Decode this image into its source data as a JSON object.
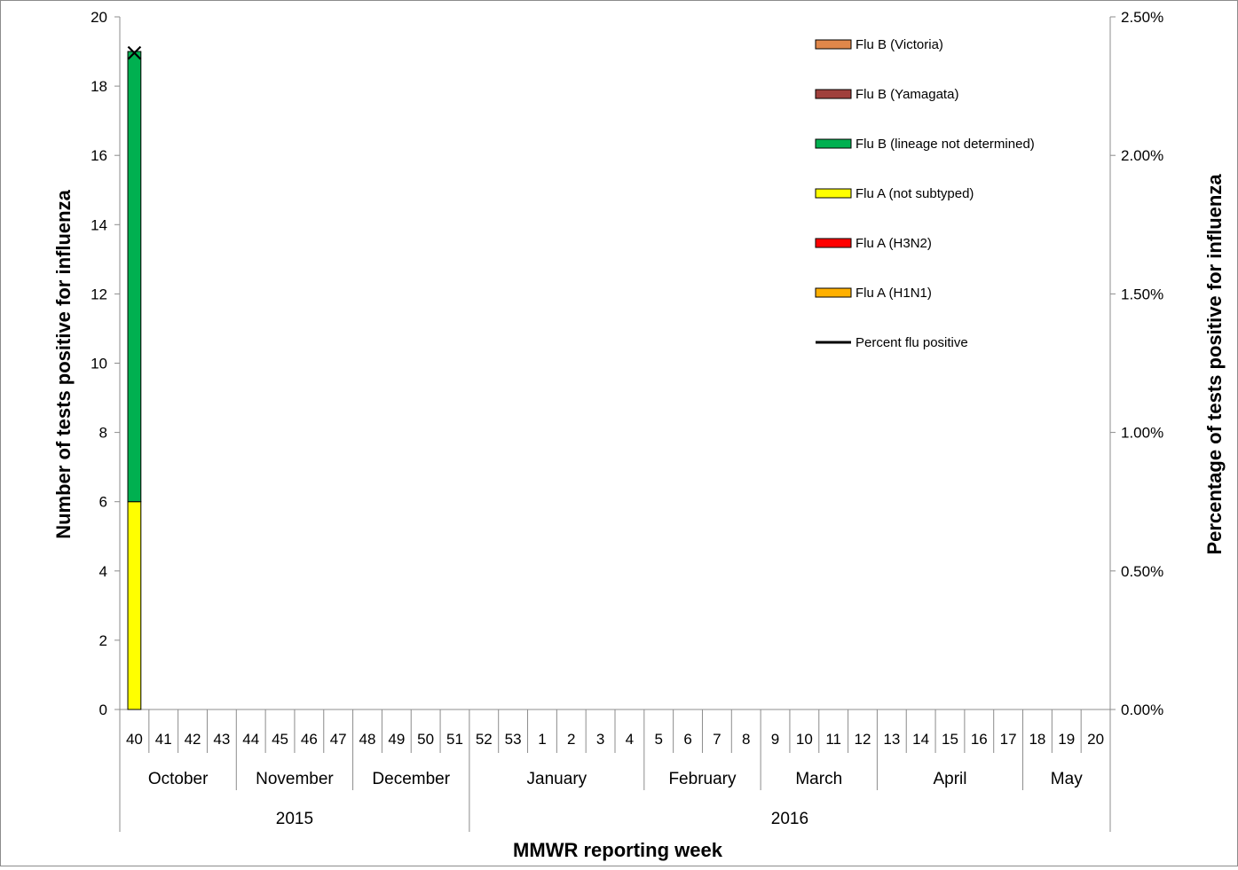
{
  "chart_data": {
    "type": "bar",
    "stacked": true,
    "xlabel": "MMWR reporting week",
    "ylabel": "Number of tests positive for influenza",
    "y2label": "Percentage of  tests  positive for influenza",
    "ylim": [
      0,
      20
    ],
    "y_ticks": [
      0,
      2,
      4,
      6,
      8,
      10,
      12,
      14,
      16,
      18,
      20
    ],
    "y2lim": [
      0,
      2.5
    ],
    "y2_ticks": [
      "0.00%",
      "0.50%",
      "1.00%",
      "1.50%",
      "2.00%",
      "2.50%"
    ],
    "grid": false,
    "legend_position": "top-right",
    "weeks": [
      "40",
      "41",
      "42",
      "43",
      "44",
      "45",
      "46",
      "47",
      "48",
      "49",
      "50",
      "51",
      "52",
      "53",
      "1",
      "2",
      "3",
      "4",
      "5",
      "6",
      "7",
      "8",
      "9",
      "10",
      "11",
      "12",
      "13",
      "14",
      "15",
      "16",
      "17",
      "18",
      "19",
      "20"
    ],
    "months": [
      {
        "name": "October",
        "span": 4
      },
      {
        "name": "November",
        "span": 4
      },
      {
        "name": "December",
        "span": 4
      },
      {
        "name": "January",
        "span": 6
      },
      {
        "name": "February",
        "span": 4
      },
      {
        "name": "March",
        "span": 4
      },
      {
        "name": "April",
        "span": 5
      },
      {
        "name": "May",
        "span": 3
      }
    ],
    "years": [
      {
        "name": "2015",
        "span": 12
      },
      {
        "name": "2016",
        "span": 22
      }
    ],
    "series": [
      {
        "name": "Flu A (H1N1)",
        "color": "#ffb000",
        "values": [
          0,
          0,
          0,
          0,
          0,
          0,
          0,
          0,
          0,
          0,
          0,
          0,
          0,
          0,
          0,
          0,
          0,
          0,
          0,
          0,
          0,
          0,
          0,
          0,
          0,
          0,
          0,
          0,
          0,
          0,
          0,
          0,
          0,
          0
        ]
      },
      {
        "name": "Flu A (H3N2)",
        "color": "#ff0000",
        "values": [
          0,
          0,
          0,
          0,
          0,
          0,
          0,
          0,
          0,
          0,
          0,
          0,
          0,
          0,
          0,
          0,
          0,
          0,
          0,
          0,
          0,
          0,
          0,
          0,
          0,
          0,
          0,
          0,
          0,
          0,
          0,
          0,
          0,
          0
        ]
      },
      {
        "name": "Flu A (not subtyped)",
        "color": "#ffff00",
        "values": [
          6,
          0,
          0,
          0,
          0,
          0,
          0,
          0,
          0,
          0,
          0,
          0,
          0,
          0,
          0,
          0,
          0,
          0,
          0,
          0,
          0,
          0,
          0,
          0,
          0,
          0,
          0,
          0,
          0,
          0,
          0,
          0,
          0,
          0
        ]
      },
      {
        "name": "Flu B (lineage not determined)",
        "color": "#00b050",
        "values": [
          13,
          0,
          0,
          0,
          0,
          0,
          0,
          0,
          0,
          0,
          0,
          0,
          0,
          0,
          0,
          0,
          0,
          0,
          0,
          0,
          0,
          0,
          0,
          0,
          0,
          0,
          0,
          0,
          0,
          0,
          0,
          0,
          0,
          0
        ]
      },
      {
        "name": "Flu B (Yamagata)",
        "color": "#a0403c",
        "values": [
          0,
          0,
          0,
          0,
          0,
          0,
          0,
          0,
          0,
          0,
          0,
          0,
          0,
          0,
          0,
          0,
          0,
          0,
          0,
          0,
          0,
          0,
          0,
          0,
          0,
          0,
          0,
          0,
          0,
          0,
          0,
          0,
          0,
          0
        ]
      },
      {
        "name": "Flu B (Victoria)",
        "color": "#e0874a",
        "values": [
          0,
          0,
          0,
          0,
          0,
          0,
          0,
          0,
          0,
          0,
          0,
          0,
          0,
          0,
          0,
          0,
          0,
          0,
          0,
          0,
          0,
          0,
          0,
          0,
          0,
          0,
          0,
          0,
          0,
          0,
          0,
          0,
          0,
          0
        ]
      }
    ],
    "line_series": {
      "name": "Percent flu positive",
      "color": "#000000",
      "axis": "right",
      "values": [
        2.37
      ]
    },
    "legend_order": [
      "Flu B (Victoria)",
      "Flu B (Yamagata)",
      "Flu B (lineage not determined)",
      "Flu A (not subtyped)",
      "Flu A (H3N2)",
      "Flu A (H1N1)",
      "Percent flu positive"
    ]
  }
}
